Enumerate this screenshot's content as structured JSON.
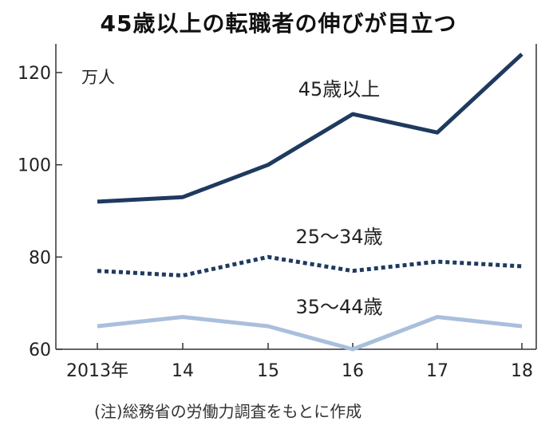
{
  "chart_data": {
    "type": "line",
    "title": "45歳以上の転職者の伸びが目立つ",
    "unit": "万人",
    "categories": [
      "2013年",
      "14",
      "15",
      "16",
      "17",
      "18"
    ],
    "ylim": [
      60,
      125
    ],
    "yticks": [
      60,
      80,
      100,
      120
    ],
    "grid": false,
    "series": [
      {
        "name": "45歳以上",
        "values": [
          92,
          93,
          100,
          111,
          107,
          124
        ],
        "color": "#1f3a5f",
        "style": "solid"
      },
      {
        "name": "25～34歳",
        "values": [
          77,
          76,
          80,
          77,
          79,
          78
        ],
        "color": "#1f3a5f",
        "style": "dotted"
      },
      {
        "name": "35～44歳",
        "values": [
          65,
          67,
          65,
          60,
          67,
          65
        ],
        "color": "#a9bfdc",
        "style": "solid"
      }
    ],
    "note": "(注)総務省の労働力調査をもとに作成"
  }
}
